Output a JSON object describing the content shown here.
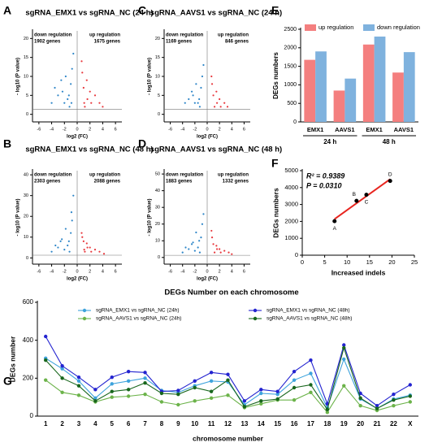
{
  "chart_data": [
    {
      "type": "volcano",
      "panel_label": "A",
      "title": "sgRNA_EMX1 vs sgRNA_NC (24 h)",
      "x_label": "log2 (FC)",
      "y_label": "- log10 (P value)",
      "annotations": [
        "down regulation",
        "1902 genes",
        "up regulation",
        "1675 genes"
      ],
      "xlim": [
        -7,
        7
      ],
      "xticks": [
        -6,
        -4,
        -2,
        0,
        2,
        4,
        6
      ],
      "ylim": [
        -2,
        22
      ],
      "yticks": [
        0,
        5,
        10,
        15,
        20
      ],
      "hline": 1.3,
      "vline": 0,
      "series": [
        {
          "color": "#2e86c8",
          "x": [
            -1.2,
            -1.5,
            -2,
            -2.3,
            -1,
            -3,
            -1.8,
            -0.8,
            -2.5,
            -4,
            -3.5,
            -0.6,
            -1.3,
            -0.9
          ],
          "values": [
            2,
            4,
            3,
            6,
            8,
            5,
            10,
            12,
            9,
            3,
            7,
            16,
            5,
            3
          ]
        },
        {
          "color": "#e8383d",
          "x": [
            1.2,
            1.6,
            2.2,
            1,
            2.8,
            3.5,
            1.5,
            0.8,
            4,
            2,
            0.7,
            1.1
          ],
          "values": [
            2,
            4,
            3,
            7,
            5,
            3,
            9,
            11,
            2,
            6,
            14,
            3
          ]
        }
      ]
    },
    {
      "type": "volcano",
      "panel_label": "B",
      "title": "sgRNA_EMX1 vs sgRNA_NC (48 h)",
      "x_label": "log2 (FC)",
      "y_label": "- log10 (P value)",
      "annotations": [
        "down regulation",
        "2303 genes",
        "up regulation",
        "2088 genes"
      ],
      "xlim": [
        -7,
        7
      ],
      "xticks": [
        -6,
        -4,
        -2,
        0,
        2,
        4,
        6
      ],
      "ylim": [
        -3,
        42
      ],
      "yticks": [
        0,
        10,
        20,
        30,
        40
      ],
      "hline": 1.3,
      "vline": 0,
      "series": [
        {
          "color": "#2e86c8",
          "x": [
            -1.2,
            -1.5,
            -2,
            -2.4,
            -1,
            -3,
            -1.8,
            -0.8,
            -2.6,
            -4,
            -3.4,
            -0.6,
            -1.3,
            -0.9
          ],
          "values": [
            3,
            6,
            4,
            9,
            12,
            5,
            14,
            18,
            8,
            3,
            6,
            30,
            8,
            22
          ]
        },
        {
          "color": "#e8383d",
          "x": [
            1.2,
            1.6,
            2.2,
            1,
            2.8,
            3.5,
            1.5,
            0.8,
            4.2,
            2,
            0.7,
            1.1
          ],
          "values": [
            3,
            5,
            3,
            8,
            4,
            3,
            7,
            10,
            2,
            5,
            12,
            4
          ]
        }
      ]
    },
    {
      "type": "volcano",
      "panel_label": "C",
      "title": "sgRNA_AAVS1 vs sgRNA_NC (24 h)",
      "x_label": "log2 (FC)",
      "y_label": "- log10 (P value)",
      "annotations": [
        "down regulation",
        "1169 genes",
        "up regulation",
        "846 genes"
      ],
      "xlim": [
        -7,
        7
      ],
      "xticks": [
        -6,
        -4,
        -2,
        0,
        2,
        4,
        6
      ],
      "ylim": [
        -2,
        22
      ],
      "yticks": [
        0,
        5,
        10,
        15,
        20
      ],
      "hline": 1.3,
      "vline": 0,
      "series": [
        {
          "color": "#2e86c8",
          "x": [
            -1.2,
            -1.5,
            -2,
            -2.3,
            -1,
            -3,
            -1.8,
            -0.8,
            -2.5,
            -3.6,
            -0.6,
            -1.3
          ],
          "values": [
            2,
            3,
            3,
            5,
            7,
            4,
            8,
            10,
            6,
            3,
            13,
            4
          ]
        },
        {
          "color": "#e8383d",
          "x": [
            1.2,
            1.6,
            2.2,
            1,
            2.8,
            3.3,
            1.5,
            0.8,
            2,
            0.7
          ],
          "values": [
            2,
            3,
            2,
            5,
            3,
            2,
            6,
            8,
            4,
            10
          ]
        }
      ]
    },
    {
      "type": "volcano",
      "panel_label": "D",
      "title": "sgRNA_AAVS1 vs sgRNA_NC (48 h)",
      "x_label": "log2 (FC)",
      "y_label": "- log10 (P value)",
      "annotations": [
        "down regulation",
        "1883 genes",
        "up regulation",
        "1332 genes"
      ],
      "xlim": [
        -7,
        7
      ],
      "xticks": [
        -6,
        -4,
        -2,
        0,
        2,
        4,
        6
      ],
      "ylim": [
        -4,
        52
      ],
      "yticks": [
        0,
        10,
        20,
        30,
        40,
        50
      ],
      "hline": 1.3,
      "vline": 0,
      "series": [
        {
          "color": "#2e86c8",
          "x": [
            -1.2,
            -1.5,
            -2,
            -2.3,
            -1,
            -3,
            -1.8,
            -0.8,
            -2.5,
            -4,
            -3.5,
            -0.6,
            -1.3
          ],
          "values": [
            3,
            6,
            4,
            9,
            12,
            5,
            15,
            20,
            8,
            3,
            6,
            26,
            10
          ]
        },
        {
          "color": "#e8383d",
          "x": [
            1.2,
            1.6,
            2.2,
            1,
            2.8,
            3.5,
            1.5,
            0.8,
            4,
            2,
            0.7
          ],
          "values": [
            3,
            5,
            3,
            8,
            4,
            3,
            7,
            12,
            2,
            5,
            16
          ]
        }
      ]
    },
    {
      "type": "bar",
      "panel_label": "E",
      "y_label": "DEGs numbers",
      "categories": [
        "EMX1",
        "AAVS1",
        "EMX1",
        "AAVS1"
      ],
      "groups": [
        "24 h",
        "48 h"
      ],
      "ylim": [
        0,
        2500
      ],
      "yticks": [
        0,
        500,
        1000,
        1500,
        2000,
        2500
      ],
      "series": [
        {
          "name": "up regulation",
          "color": "#f47f7f",
          "values": [
            1675,
            846,
            2088,
            1332
          ]
        },
        {
          "name": "down regulation",
          "color": "#7fb2de",
          "values": [
            1902,
            1169,
            2303,
            1883
          ]
        }
      ]
    },
    {
      "type": "scatter",
      "panel_label": "F",
      "x_label": "Increased indels",
      "y_label": "DEGs numbers",
      "annotations": [
        "R² = 0.9389",
        "P = 0.0310"
      ],
      "xlim": [
        0,
        25
      ],
      "xticks": [
        0,
        5,
        10,
        15,
        20,
        25
      ],
      "ylim": [
        0,
        5000
      ],
      "yticks": [
        0,
        1000,
        2000,
        3000,
        4000,
        5000
      ],
      "fit_color": "#e8251f",
      "point_labels": [
        "A",
        "B",
        "C",
        "D"
      ],
      "x": [
        7.2,
        12.1,
        14.3,
        19.6
      ],
      "values": [
        2015,
        3215,
        3577,
        4391
      ]
    },
    {
      "type": "line",
      "panel_label": "G",
      "title": "DEGs Number on each chromosome",
      "x_label": "chromosome number",
      "y_label": "DEGs number",
      "categories": [
        "1",
        "2",
        "3",
        "4",
        "5",
        "6",
        "7",
        "8",
        "9",
        "10",
        "11",
        "12",
        "13",
        "14",
        "15",
        "16",
        "17",
        "18",
        "19",
        "20",
        "21",
        "22",
        "X"
      ],
      "ylim": [
        0,
        600
      ],
      "yticks": [
        0,
        200,
        400,
        600
      ],
      "series": [
        {
          "name": "sgRNA_EMX1 vs sgRNA_NC (24h)",
          "color": "#3ea3dc",
          "values": [
            305,
            250,
            185,
            95,
            170,
            185,
            200,
            135,
            125,
            160,
            185,
            180,
            60,
            120,
            115,
            190,
            225,
            45,
            300,
            90,
            40,
            90,
            110
          ]
        },
        {
          "name": "sgRNA_EMX1 vs sgRNA_NC (48h)",
          "color": "#2323d0",
          "values": [
            420,
            265,
            205,
            140,
            205,
            235,
            230,
            130,
            135,
            185,
            230,
            220,
            80,
            140,
            130,
            235,
            295,
            65,
            375,
            120,
            55,
            115,
            165
          ]
        },
        {
          "name": "sgRNA_AAVS1 vs sgRNA_NC (24h)",
          "color": "#6cb34a",
          "values": [
            190,
            125,
            110,
            75,
            100,
            105,
            115,
            75,
            60,
            80,
            95,
            110,
            45,
            65,
            85,
            85,
            125,
            20,
            160,
            55,
            30,
            55,
            75
          ]
        },
        {
          "name": "sgRNA_AAVS1 vs sgRNA_NC (48h)",
          "color": "#17661c",
          "values": [
            295,
            200,
            160,
            80,
            130,
            140,
            175,
            120,
            115,
            150,
            130,
            190,
            50,
            80,
            90,
            150,
            165,
            35,
            360,
            95,
            40,
            85,
            105
          ]
        }
      ]
    }
  ]
}
